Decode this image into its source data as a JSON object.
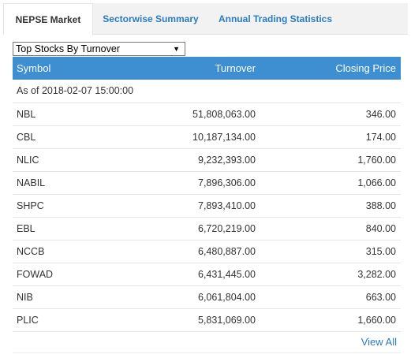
{
  "tabs": [
    {
      "label": "NEPSE Market",
      "active": true
    },
    {
      "label": "Sectorwise Summary",
      "active": false
    },
    {
      "label": "Annual Trading Statistics",
      "active": false
    }
  ],
  "dropdown": {
    "selected": "Top Stocks By Turnover"
  },
  "table": {
    "headers": {
      "symbol": "Symbol",
      "turnover": "Turnover",
      "closing": "Closing Price"
    },
    "as_of": "As of 2018-02-07 15:00:00",
    "rows": [
      {
        "symbol": "NBL",
        "turnover": "51,808,063.00",
        "closing": "346.00"
      },
      {
        "symbol": "CBL",
        "turnover": "10,187,134.00",
        "closing": "174.00"
      },
      {
        "symbol": "NLIC",
        "turnover": "9,232,393.00",
        "closing": "1,760.00"
      },
      {
        "symbol": "NABIL",
        "turnover": "7,896,306.00",
        "closing": "1,066.00"
      },
      {
        "symbol": "SHPC",
        "turnover": "7,893,410.00",
        "closing": "388.00"
      },
      {
        "symbol": "EBL",
        "turnover": "6,720,219.00",
        "closing": "840.00"
      },
      {
        "symbol": "NCCB",
        "turnover": "6,480,887.00",
        "closing": "315.00"
      },
      {
        "symbol": "FOWAD",
        "turnover": "6,431,445.00",
        "closing": "3,282.00"
      },
      {
        "symbol": "NIB",
        "turnover": "6,061,804.00",
        "closing": "663.00"
      },
      {
        "symbol": "PLIC",
        "turnover": "5,831,069.00",
        "closing": "1,660.00"
      }
    ]
  },
  "view_all": "View All",
  "colors": {
    "header_bg": "#3d8fd1",
    "link": "#2a7bbf"
  }
}
